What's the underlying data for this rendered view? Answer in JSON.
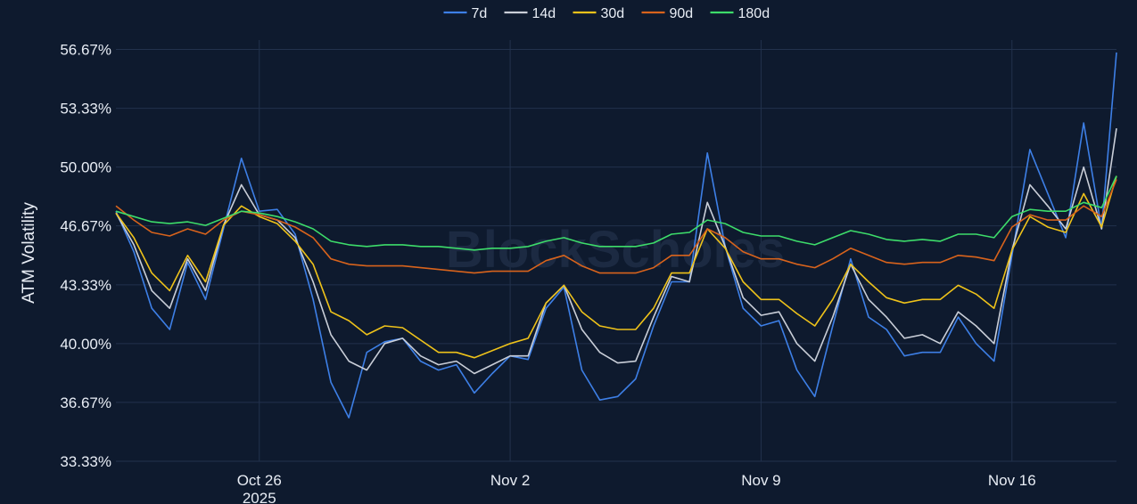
{
  "watermark": "BlockScholes",
  "chart_data": {
    "type": "line",
    "ylabel": "ATM Volatility",
    "xlabel": "",
    "grid": true,
    "legend_position": "top-center",
    "x_range": [
      "2025-10-22",
      "2025-11-18T22:00"
    ],
    "y_range": [
      33.33,
      57.2
    ],
    "yticks": [
      "33.33%",
      "36.67%",
      "40.00%",
      "43.33%",
      "46.67%",
      "50.00%",
      "53.33%",
      "56.67%"
    ],
    "ytick_values": [
      33.33,
      36.67,
      40.0,
      43.33,
      46.67,
      50.0,
      53.33,
      56.67
    ],
    "xticks": [
      {
        "date": "2025-10-26",
        "label": "Oct 26",
        "sublabel": "2025"
      },
      {
        "date": "2025-11-02",
        "label": "Nov 2",
        "sublabel": ""
      },
      {
        "date": "2025-11-09",
        "label": "Nov 9",
        "sublabel": ""
      },
      {
        "date": "2025-11-16",
        "label": "Nov 16",
        "sublabel": ""
      }
    ],
    "x": [
      "2025-10-22T00:00",
      "2025-10-22T12:00",
      "2025-10-23T00:00",
      "2025-10-23T12:00",
      "2025-10-24T00:00",
      "2025-10-24T12:00",
      "2025-10-25T00:00",
      "2025-10-25T12:00",
      "2025-10-26T00:00",
      "2025-10-26T12:00",
      "2025-10-27T00:00",
      "2025-10-27T12:00",
      "2025-10-28T00:00",
      "2025-10-28T12:00",
      "2025-10-29T00:00",
      "2025-10-29T12:00",
      "2025-10-30T00:00",
      "2025-10-30T12:00",
      "2025-10-31T00:00",
      "2025-10-31T12:00",
      "2025-11-01T00:00",
      "2025-11-01T12:00",
      "2025-11-02T00:00",
      "2025-11-02T12:00",
      "2025-11-03T00:00",
      "2025-11-03T12:00",
      "2025-11-04T00:00",
      "2025-11-04T12:00",
      "2025-11-05T00:00",
      "2025-11-05T12:00",
      "2025-11-06T00:00",
      "2025-11-06T12:00",
      "2025-11-07T00:00",
      "2025-11-07T12:00",
      "2025-11-08T00:00",
      "2025-11-08T12:00",
      "2025-11-09T00:00",
      "2025-11-09T12:00",
      "2025-11-10T00:00",
      "2025-11-10T12:00",
      "2025-11-11T00:00",
      "2025-11-11T12:00",
      "2025-11-12T00:00",
      "2025-11-12T12:00",
      "2025-11-13T00:00",
      "2025-11-13T12:00",
      "2025-11-14T00:00",
      "2025-11-14T12:00",
      "2025-11-15T00:00",
      "2025-11-15T12:00",
      "2025-11-16T00:00",
      "2025-11-16T12:00",
      "2025-11-17T00:00",
      "2025-11-17T12:00",
      "2025-11-18T00:00",
      "2025-11-18T12:00",
      "2025-11-18T22:00"
    ],
    "series": [
      {
        "name": "7d",
        "color": "#3d7fe6",
        "values": [
          47.5,
          45.2,
          42.0,
          40.8,
          44.6,
          42.5,
          46.5,
          50.5,
          47.5,
          47.6,
          46.2,
          42.5,
          37.8,
          35.8,
          39.5,
          40.1,
          40.3,
          39.0,
          38.5,
          38.8,
          37.2,
          38.3,
          39.3,
          39.1,
          42.0,
          43.2,
          38.5,
          36.8,
          37.0,
          38.0,
          41.0,
          43.5,
          43.5,
          50.8,
          45.5,
          42.0,
          41.0,
          41.3,
          38.5,
          37.0,
          41.0,
          44.8,
          41.5,
          40.8,
          39.3,
          39.5,
          39.5,
          41.5,
          40.0,
          39.0,
          45.0,
          51.0,
          48.5,
          46.0,
          52.5,
          46.5,
          56.5
        ]
      },
      {
        "name": "14d",
        "color": "#c9ced8",
        "values": [
          47.4,
          45.6,
          43.0,
          42.0,
          44.8,
          43.0,
          46.7,
          49.0,
          47.3,
          47.0,
          46.0,
          43.5,
          40.5,
          39.0,
          38.5,
          40.0,
          40.3,
          39.3,
          38.8,
          39.0,
          38.3,
          38.8,
          39.3,
          39.3,
          42.3,
          43.3,
          40.8,
          39.5,
          38.9,
          39.0,
          41.5,
          43.8,
          43.5,
          48.0,
          45.5,
          42.6,
          41.6,
          41.8,
          40.0,
          39.0,
          41.5,
          44.5,
          42.5,
          41.5,
          40.3,
          40.5,
          40.0,
          41.8,
          41.0,
          40.0,
          45.3,
          49.0,
          47.8,
          46.5,
          50.0,
          46.5,
          52.2
        ]
      },
      {
        "name": "30d",
        "color": "#eec21a",
        "values": [
          47.4,
          46.0,
          44.0,
          43.0,
          45.0,
          43.5,
          46.7,
          47.8,
          47.2,
          46.8,
          45.8,
          44.5,
          41.8,
          41.3,
          40.5,
          41.0,
          40.9,
          40.2,
          39.5,
          39.5,
          39.2,
          39.6,
          40.0,
          40.3,
          42.3,
          43.3,
          41.8,
          41.0,
          40.8,
          40.8,
          42.0,
          44.0,
          44.0,
          46.5,
          45.4,
          43.5,
          42.5,
          42.5,
          41.7,
          41.0,
          42.5,
          44.5,
          43.5,
          42.6,
          42.3,
          42.5,
          42.5,
          43.3,
          42.8,
          42.0,
          45.3,
          47.2,
          46.6,
          46.3,
          48.5,
          46.6,
          49.5
        ]
      },
      {
        "name": "90d",
        "color": "#d8631c",
        "values": [
          47.8,
          47.0,
          46.3,
          46.1,
          46.5,
          46.2,
          47.0,
          47.5,
          47.3,
          47.0,
          46.6,
          46.0,
          44.8,
          44.5,
          44.4,
          44.4,
          44.4,
          44.3,
          44.2,
          44.1,
          44.0,
          44.1,
          44.1,
          44.1,
          44.7,
          45.0,
          44.4,
          44.0,
          44.0,
          44.0,
          44.3,
          45.0,
          45.0,
          46.5,
          46.0,
          45.2,
          44.8,
          44.8,
          44.5,
          44.3,
          44.8,
          45.4,
          45.0,
          44.6,
          44.5,
          44.6,
          44.6,
          45.0,
          44.9,
          44.7,
          46.6,
          47.3,
          47.0,
          47.0,
          47.8,
          47.2,
          49.3
        ]
      },
      {
        "name": "180d",
        "color": "#3ddc6a",
        "values": [
          47.5,
          47.2,
          46.9,
          46.8,
          46.9,
          46.7,
          47.1,
          47.5,
          47.4,
          47.2,
          46.9,
          46.5,
          45.8,
          45.6,
          45.5,
          45.6,
          45.6,
          45.5,
          45.5,
          45.4,
          45.3,
          45.4,
          45.4,
          45.5,
          45.8,
          46.0,
          45.7,
          45.5,
          45.5,
          45.5,
          45.7,
          46.2,
          46.3,
          47.0,
          46.8,
          46.3,
          46.1,
          46.1,
          45.8,
          45.6,
          46.0,
          46.4,
          46.2,
          45.9,
          45.8,
          45.9,
          45.8,
          46.2,
          46.2,
          46.0,
          47.2,
          47.6,
          47.5,
          47.5,
          48.0,
          47.7,
          49.5
        ]
      }
    ]
  }
}
